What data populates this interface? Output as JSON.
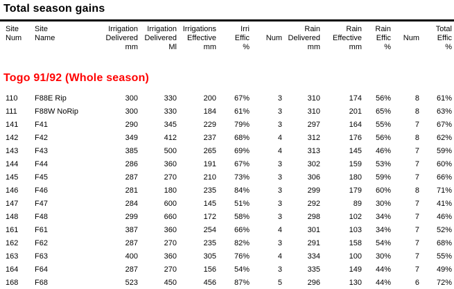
{
  "report": {
    "title": "Total season gains",
    "group_heading": "Togo 91/92 (Whole season)",
    "colors": {
      "group_heading": "#ff0000",
      "text": "#000000",
      "background": "#ffffff",
      "rule": "#000000"
    }
  },
  "table": {
    "columns": [
      {
        "id": "site-num",
        "lines": [
          "Site",
          "Num",
          ""
        ]
      },
      {
        "id": "site-name",
        "lines": [
          "Site",
          "Name",
          ""
        ]
      },
      {
        "id": "irrigation-delivered-mm",
        "lines": [
          "Irrigation",
          "Delivered",
          "mm"
        ]
      },
      {
        "id": "irrigation-delivered-ml",
        "lines": [
          "Irrigation",
          "Delivered",
          "Ml"
        ]
      },
      {
        "id": "irrigations-effective-mm",
        "lines": [
          "Irrigations",
          "Effective",
          "mm"
        ]
      },
      {
        "id": "irri-effic-pct",
        "lines": [
          "Irri",
          "Effic",
          "%"
        ]
      },
      {
        "id": "irrigations-num",
        "lines": [
          "",
          "Num",
          ""
        ]
      },
      {
        "id": "rain-delivered-mm",
        "lines": [
          "Rain",
          "Delivered",
          "mm"
        ]
      },
      {
        "id": "rain-effective-mm",
        "lines": [
          "Rain",
          "Effective",
          "mm"
        ]
      },
      {
        "id": "rain-effic-pct",
        "lines": [
          "Rain",
          "Effic",
          "%"
        ]
      },
      {
        "id": "rain-num",
        "lines": [
          "",
          "Num",
          ""
        ]
      },
      {
        "id": "total-effic-pct",
        "lines": [
          "Total",
          "Effic",
          "%"
        ]
      }
    ],
    "rows": [
      [
        "110",
        "F88E Rip",
        "300",
        "330",
        "200",
        "67%",
        "3",
        "310",
        "174",
        "56%",
        "8",
        "61%"
      ],
      [
        "111",
        "F88W NoRip",
        "300",
        "330",
        "184",
        "61%",
        "3",
        "310",
        "201",
        "65%",
        "8",
        "63%"
      ],
      [
        "141",
        "F41",
        "290",
        "345",
        "229",
        "79%",
        "3",
        "297",
        "164",
        "55%",
        "7",
        "67%"
      ],
      [
        "142",
        "F42",
        "349",
        "412",
        "237",
        "68%",
        "4",
        "312",
        "176",
        "56%",
        "8",
        "62%"
      ],
      [
        "143",
        "F43",
        "385",
        "500",
        "265",
        "69%",
        "4",
        "313",
        "145",
        "46%",
        "7",
        "59%"
      ],
      [
        "144",
        "F44",
        "286",
        "360",
        "191",
        "67%",
        "3",
        "302",
        "159",
        "53%",
        "7",
        "60%"
      ],
      [
        "145",
        "F45",
        "287",
        "270",
        "210",
        "73%",
        "3",
        "306",
        "180",
        "59%",
        "7",
        "66%"
      ],
      [
        "146",
        "F46",
        "281",
        "180",
        "235",
        "84%",
        "3",
        "299",
        "179",
        "60%",
        "8",
        "71%"
      ],
      [
        "147",
        "F47",
        "284",
        "600",
        "145",
        "51%",
        "3",
        "292",
        "89",
        "30%",
        "7",
        "41%"
      ],
      [
        "148",
        "F48",
        "299",
        "660",
        "172",
        "58%",
        "3",
        "298",
        "102",
        "34%",
        "7",
        "46%"
      ],
      [
        "161",
        "F61",
        "387",
        "360",
        "254",
        "66%",
        "4",
        "301",
        "103",
        "34%",
        "7",
        "52%"
      ],
      [
        "162",
        "F62",
        "287",
        "270",
        "235",
        "82%",
        "3",
        "291",
        "158",
        "54%",
        "7",
        "68%"
      ],
      [
        "163",
        "F63",
        "400",
        "360",
        "305",
        "76%",
        "4",
        "334",
        "100",
        "30%",
        "7",
        "55%"
      ],
      [
        "164",
        "F64",
        "287",
        "270",
        "156",
        "54%",
        "3",
        "335",
        "149",
        "44%",
        "7",
        "49%"
      ],
      [
        "168",
        "F68",
        "523",
        "450",
        "456",
        "87%",
        "5",
        "296",
        "130",
        "44%",
        "6",
        "72%"
      ]
    ]
  }
}
